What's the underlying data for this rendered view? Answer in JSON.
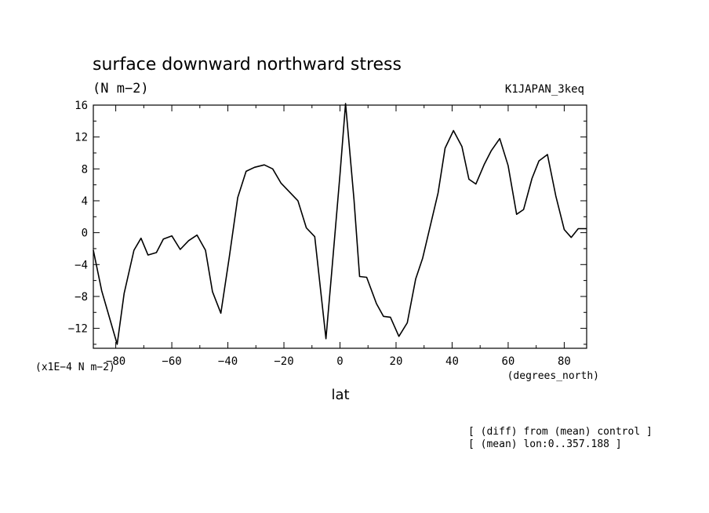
{
  "header": {
    "title": "surface downward northward stress",
    "units": "(N m−2)",
    "run_name": "K1JAPAN_3keq"
  },
  "footer": {
    "note_1": "[ (diff) from (mean) control ]",
    "note_2": "[ (mean) lon:0..357.188 ]"
  },
  "chart_data": {
    "type": "line",
    "title": "surface downward northward stress",
    "xlabel": "lat",
    "x_units": "(degrees_north)",
    "y_scale_label": "(x1E−4 N m−2)",
    "xlim": [
      -88,
      88
    ],
    "ylim": [
      -14.5,
      16
    ],
    "x_ticks": [
      -80,
      -60,
      -40,
      -20,
      0,
      20,
      40,
      60,
      80
    ],
    "x_tick_labels": [
      "−80",
      "−60",
      "−40",
      "−20",
      "0",
      "20",
      "40",
      "60",
      "80"
    ],
    "y_ticks": [
      -12,
      -8,
      -4,
      0,
      4,
      8,
      12,
      16
    ],
    "y_tick_labels": [
      "−12",
      "−8",
      "−4",
      "0",
      "4",
      "8",
      "12",
      "16"
    ],
    "grid": false,
    "series": [
      {
        "x": [
          -88,
          -85,
          -79.5,
          -77,
          -73.5,
          -71,
          -68.5,
          -65.5,
          -63,
          -60,
          -57,
          -54,
          -51,
          -48,
          -45.5,
          -42.5,
          -39.5,
          -36.5,
          -33.5,
          -30.5,
          -27,
          -24,
          -21,
          -18,
          -15,
          -12,
          -9,
          -5,
          -3,
          0,
          2,
          5,
          7,
          9.5,
          13,
          15.5,
          18,
          21,
          24,
          27,
          29.5,
          35,
          37.5,
          40.5,
          43.5,
          46,
          48.5,
          51.5,
          54,
          57,
          60,
          63,
          65.5,
          68.5,
          71,
          74,
          77,
          80,
          82.5,
          85,
          88
        ],
        "y": [
          -2.2,
          -7.3,
          -14.0,
          -7.6,
          -2.2,
          -0.7,
          -2.8,
          -2.5,
          -0.8,
          -0.4,
          -2.1,
          -1.0,
          -0.3,
          -2.2,
          -7.4,
          -10.1,
          -3.1,
          4.4,
          7.7,
          8.2,
          8.5,
          8.0,
          6.2,
          5.1,
          4.0,
          0.6,
          -0.5,
          -13.3,
          -5.1,
          7.3,
          16.2,
          4.1,
          -5.5,
          -5.6,
          -8.9,
          -10.5,
          -10.6,
          -13.0,
          -11.3,
          -5.8,
          -3.2,
          5.0,
          10.6,
          12.8,
          10.8,
          6.7,
          6.1,
          8.6,
          10.3,
          11.8,
          8.4,
          2.3,
          2.9,
          6.8,
          9.0,
          9.8,
          4.6,
          0.4,
          -0.6,
          0.5,
          0.5
        ]
      }
    ]
  }
}
